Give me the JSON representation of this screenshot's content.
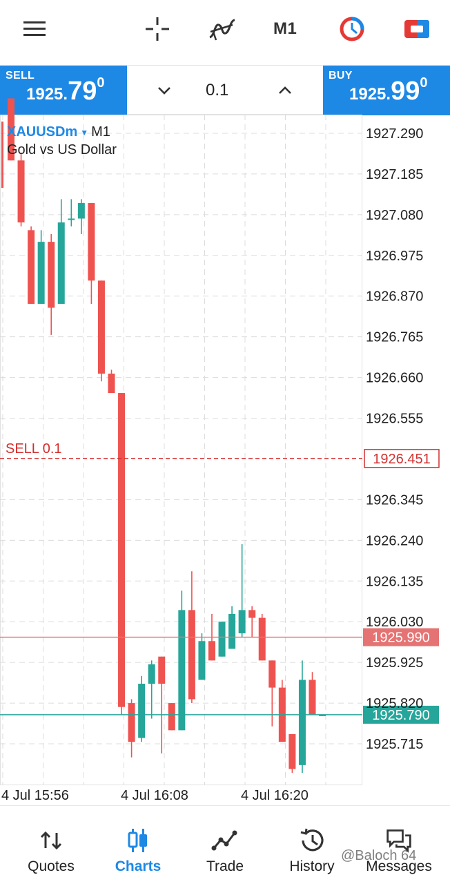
{
  "toolbar": {
    "menu_icon": "menu-icon",
    "crosshair_icon": "crosshair-icon",
    "indicators_icon": "indicators-icon",
    "timeframe_label": "M1",
    "objects_icon": "clock-object-icon",
    "trade_icon": "one-click-trade-icon"
  },
  "trade": {
    "sell": {
      "label": "SELL",
      "price_small": "1925.",
      "price_big": "79",
      "price_sup": "0"
    },
    "buy": {
      "label": "BUY",
      "price_small": "1925.",
      "price_big": "99",
      "price_sup": "0"
    },
    "lot": "0.1"
  },
  "symbol": {
    "name": "XAUUSDm",
    "timeframe": "M1",
    "description": "Gold vs US Dollar"
  },
  "chart_data": {
    "type": "candlestick",
    "y_labels": [
      "1927.290",
      "1927.185",
      "1927.080",
      "1926.975",
      "1926.870",
      "1926.765",
      "1926.660",
      "1926.555",
      "1926.345",
      "1926.240",
      "1926.135",
      "1926.030",
      "1925.925",
      "1925.820",
      "1925.715"
    ],
    "ylim": [
      1925.66,
      1927.35
    ],
    "x_labels": [
      "4 Jul 15:56",
      "4 Jul 16:08",
      "4 Jul 16:20"
    ],
    "grid": true,
    "colors": {
      "bull": "#26a69a",
      "bear": "#ef5350",
      "sell_line": "#d32f2f",
      "ask_line": "#e57373",
      "bid_line": "#26a69a"
    },
    "sell_order": {
      "label": "SELL 0.1",
      "price": 1926.451,
      "price_label": "1926.451"
    },
    "ask_line": {
      "price": 1925.99,
      "label": "1925.990"
    },
    "bid_line": {
      "price": 1925.79,
      "label": "1925.790"
    },
    "candles": [
      {
        "o": 1927.38,
        "h": 1927.38,
        "l": 1927.22,
        "c": 1927.22
      },
      {
        "o": 1927.22,
        "h": 1927.24,
        "l": 1927.05,
        "c": 1927.06
      },
      {
        "o": 1927.04,
        "h": 1927.05,
        "l": 1926.85,
        "c": 1926.85
      },
      {
        "o": 1926.85,
        "h": 1927.04,
        "l": 1926.85,
        "c": 1927.01
      },
      {
        "o": 1927.01,
        "h": 1927.03,
        "l": 1926.77,
        "c": 1926.84
      },
      {
        "o": 1926.85,
        "h": 1927.12,
        "l": 1926.85,
        "c": 1927.06
      },
      {
        "o": 1927.07,
        "h": 1927.12,
        "l": 1927.05,
        "c": 1927.07
      },
      {
        "o": 1927.07,
        "h": 1927.12,
        "l": 1927.03,
        "c": 1927.11
      },
      {
        "o": 1927.11,
        "h": 1927.11,
        "l": 1926.85,
        "c": 1926.91
      },
      {
        "o": 1926.91,
        "h": 1926.91,
        "l": 1926.65,
        "c": 1926.67
      },
      {
        "o": 1926.67,
        "h": 1926.68,
        "l": 1926.62,
        "c": 1926.62
      },
      {
        "o": 1926.62,
        "h": 1926.62,
        "l": 1925.79,
        "c": 1925.81
      },
      {
        "o": 1925.82,
        "h": 1925.83,
        "l": 1925.68,
        "c": 1925.72
      },
      {
        "o": 1925.73,
        "h": 1925.89,
        "l": 1925.72,
        "c": 1925.87
      },
      {
        "o": 1925.87,
        "h": 1925.93,
        "l": 1925.78,
        "c": 1925.92
      },
      {
        "o": 1925.94,
        "h": 1925.94,
        "l": 1925.69,
        "c": 1925.87
      },
      {
        "o": 1925.82,
        "h": 1925.82,
        "l": 1925.75,
        "c": 1925.75
      },
      {
        "o": 1925.75,
        "h": 1926.11,
        "l": 1925.75,
        "c": 1926.06
      },
      {
        "o": 1926.06,
        "h": 1926.16,
        "l": 1925.82,
        "c": 1925.83
      },
      {
        "o": 1925.88,
        "h": 1926.0,
        "l": 1925.88,
        "c": 1925.98
      },
      {
        "o": 1925.98,
        "h": 1926.05,
        "l": 1925.93,
        "c": 1925.93
      },
      {
        "o": 1925.94,
        "h": 1926.03,
        "l": 1925.94,
        "c": 1926.03
      },
      {
        "o": 1925.96,
        "h": 1926.07,
        "l": 1925.96,
        "c": 1926.05
      },
      {
        "o": 1926.0,
        "h": 1926.23,
        "l": 1925.99,
        "c": 1926.06
      },
      {
        "o": 1926.06,
        "h": 1926.07,
        "l": 1925.99,
        "c": 1926.04
      },
      {
        "o": 1926.04,
        "h": 1926.05,
        "l": 1925.93,
        "c": 1925.93
      },
      {
        "o": 1925.93,
        "h": 1925.93,
        "l": 1925.76,
        "c": 1925.86
      },
      {
        "o": 1925.86,
        "h": 1925.88,
        "l": 1925.72,
        "c": 1925.72
      },
      {
        "o": 1925.74,
        "h": 1925.74,
        "l": 1925.64,
        "c": 1925.65
      },
      {
        "o": 1925.66,
        "h": 1925.93,
        "l": 1925.64,
        "c": 1925.88
      },
      {
        "o": 1925.88,
        "h": 1925.9,
        "l": 1925.79,
        "c": 1925.79
      },
      {
        "o": 1925.79,
        "h": 1925.79,
        "l": 1925.79,
        "c": 1925.79
      }
    ]
  },
  "nav": {
    "items": [
      {
        "label": "Quotes",
        "icon": "quotes-arrows-icon"
      },
      {
        "label": "Charts",
        "icon": "charts-candles-icon"
      },
      {
        "label": "Trade",
        "icon": "trade-line-icon"
      },
      {
        "label": "History",
        "icon": "history-clock-icon"
      },
      {
        "label": "Messages",
        "icon": "messages-chat-icon"
      }
    ],
    "active": "Charts"
  },
  "watermark": "@Baloch 64"
}
